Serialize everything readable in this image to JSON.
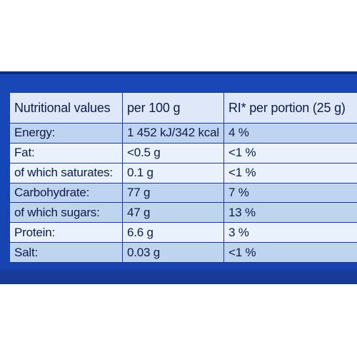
{
  "table": {
    "headers": [
      "Nutritional values",
      "per 100 g",
      "RI* per portion (25 g)"
    ],
    "rows": [
      {
        "nutrient": "Energy:",
        "per_100g": "1 452 kJ/342 kcal",
        "ri_per_portion": "4 %"
      },
      {
        "nutrient": "Fat:",
        "per_100g": "<0.5 g",
        "ri_per_portion": "<1 %"
      },
      {
        "nutrient": "of which saturates:",
        "per_100g": "0.1 g",
        "ri_per_portion": "<1 %"
      },
      {
        "nutrient": "Carbohydrate:",
        "per_100g": "77 g",
        "ri_per_portion": "7 %"
      },
      {
        "nutrient": "of which sugars:",
        "per_100g": "47 g",
        "ri_per_portion": "13 %"
      },
      {
        "nutrient": "Protein:",
        "per_100g": "6.6 g",
        "ri_per_portion": "3 %"
      },
      {
        "nutrient": "Salt:",
        "per_100g": "0.03 g",
        "ri_per_portion": "<1 %"
      }
    ]
  },
  "colors": {
    "panel_blue": "#1546b8",
    "row_shade": "#bfd4f0",
    "row_light": "#e9f2fc",
    "border": "#1a3d91",
    "text": "#0f1c48"
  }
}
